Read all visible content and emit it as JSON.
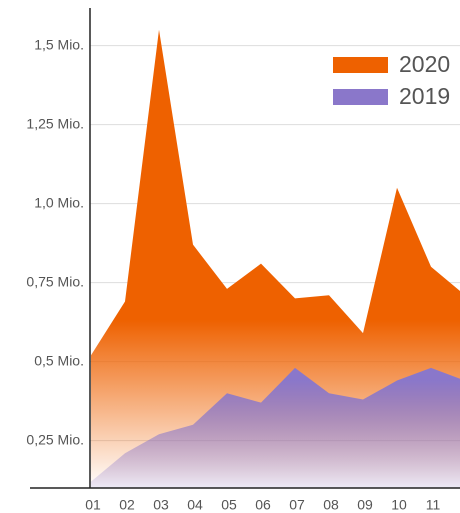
{
  "chart_data": {
    "type": "area",
    "categories": [
      "01",
      "02",
      "03",
      "04",
      "05",
      "06",
      "07",
      "08",
      "09",
      "10",
      "11",
      null
    ],
    "series": [
      {
        "name": "2020",
        "color": "#ee6100",
        "values": [
          0.52,
          0.69,
          1.55,
          0.87,
          0.73,
          0.81,
          0.7,
          0.71,
          0.59,
          1.05,
          0.8,
          0.71
        ]
      },
      {
        "name": "2019",
        "color": "#8a77ca",
        "values": [
          0.12,
          0.21,
          0.27,
          0.3,
          0.4,
          0.37,
          0.48,
          0.4,
          0.38,
          0.44,
          0.48,
          0.44
        ]
      }
    ],
    "ylim": [
      0.1,
      1.6
    ],
    "yticks": [
      {
        "value": 0.25,
        "label": "0,25 Mio."
      },
      {
        "value": 0.5,
        "label": "0,5 Mio."
      },
      {
        "value": 0.75,
        "label": "0,75 Mio."
      },
      {
        "value": 1.0,
        "label": "1,0 Mio."
      },
      {
        "value": 1.25,
        "label": "1,25 Mio."
      },
      {
        "value": 1.5,
        "label": "1,5 Mio."
      }
    ],
    "grid": true,
    "legend": "top-right"
  }
}
